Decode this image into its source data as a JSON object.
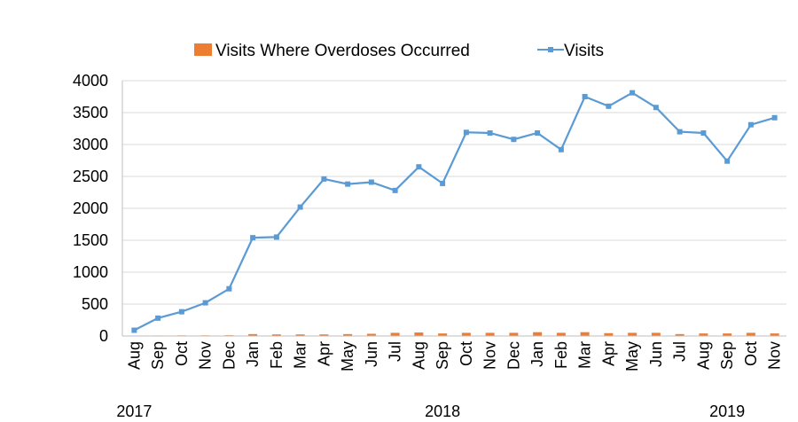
{
  "chart_data": {
    "type": "bar+line",
    "title": "",
    "xlabel": "",
    "ylabel": "",
    "ylim": [
      0,
      4000
    ],
    "yticks": [
      0,
      500,
      1000,
      1500,
      2000,
      2500,
      3000,
      3500,
      4000
    ],
    "grid": true,
    "legend": "top-center",
    "categories": [
      "Aug",
      "Sep",
      "Oct",
      "Nov",
      "Dec",
      "Jan",
      "Feb",
      "Mar",
      "Apr",
      "May",
      "Jun",
      "Jul",
      "Aug",
      "Sep",
      "Oct",
      "Nov",
      "Dec",
      "Jan",
      "Feb",
      "Mar",
      "Apr",
      "May",
      "Jun",
      "Jul",
      "Aug",
      "Sep",
      "Oct",
      "Nov"
    ],
    "year_labels": [
      {
        "label": "2017",
        "category_index": 0
      },
      {
        "label": "2018",
        "category_index": 13
      },
      {
        "label": "2019",
        "category_index": 25
      }
    ],
    "series": [
      {
        "name": "Visits Where Overdoses Occurred",
        "type": "bar",
        "color": "#ED7D31",
        "values": [
          5,
          8,
          10,
          10,
          12,
          30,
          25,
          25,
          25,
          30,
          35,
          50,
          55,
          40,
          50,
          50,
          50,
          60,
          50,
          60,
          45,
          50,
          50,
          30,
          40,
          40,
          50,
          40
        ]
      },
      {
        "name": "Visits",
        "type": "line",
        "color": "#5B9BD5",
        "values": [
          90,
          280,
          380,
          520,
          740,
          1540,
          1550,
          2020,
          2460,
          2380,
          2410,
          2280,
          2650,
          2390,
          3190,
          3180,
          3080,
          3180,
          2920,
          3750,
          3600,
          3810,
          3580,
          3200,
          3180,
          2740,
          3310,
          3420
        ]
      }
    ]
  }
}
